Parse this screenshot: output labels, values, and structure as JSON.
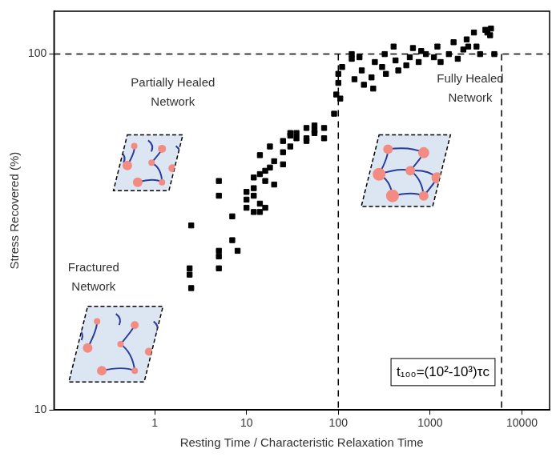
{
  "chart_data": {
    "type": "scatter",
    "x_label": "Resting Time / Characteristic Relaxation Time",
    "y_label": "Stress Recovered (%)",
    "log": true,
    "grid": false,
    "color": "#000000",
    "marker": "square",
    "xlim": [
      0.08,
      20000
    ],
    "ylim": [
      10,
      132
    ],
    "xticks": [
      1,
      10,
      100,
      1000,
      10000
    ],
    "yticks": [
      10,
      100
    ],
    "hlines": [
      100
    ],
    "vlines": [
      100,
      6000
    ],
    "annotations": [
      {
        "text": "Partially Healed Network"
      },
      {
        "text": "Fully Healed Network"
      },
      {
        "text": "Fractured Network"
      },
      {
        "text": "t₁₀₀=(10²-10³)τc"
      }
    ],
    "x": [
      2.4,
      2.4,
      2.5,
      2.5,
      5,
      5,
      5,
      5,
      5,
      7,
      7,
      8,
      10,
      10,
      10,
      12,
      12,
      12,
      12,
      14,
      14,
      14,
      14,
      16,
      16,
      16,
      18,
      18,
      20,
      20,
      25,
      25,
      25,
      30,
      30,
      30,
      35,
      35,
      45,
      45,
      45,
      55,
      55,
      55,
      70,
      70,
      90,
      95,
      100,
      100,
      105,
      110,
      140,
      140,
      150,
      170,
      180,
      190,
      230,
      240,
      250,
      300,
      320,
      330,
      400,
      420,
      450,
      550,
      600,
      650,
      750,
      800,
      900,
      1100,
      1200,
      1300,
      1600,
      1800,
      2000,
      2300,
      2500,
      2600,
      3000,
      3200,
      3500,
      4000,
      4200,
      4500,
      4600,
      5000
    ],
    "values": [
      25,
      24,
      22,
      33,
      44,
      28,
      27,
      25,
      40,
      35,
      30,
      28,
      41,
      39,
      37,
      45,
      40,
      42,
      36,
      52,
      46,
      38,
      36,
      47,
      37,
      44,
      48,
      55,
      50,
      43,
      57,
      49,
      53,
      60,
      59,
      55,
      58,
      60,
      57,
      58,
      62,
      63,
      61,
      60,
      62,
      58,
      68,
      77,
      83,
      88,
      75,
      92,
      97,
      100,
      85,
      98,
      90,
      82,
      86,
      80,
      95,
      92,
      100,
      88,
      105,
      96,
      90,
      93,
      98,
      104,
      95,
      102,
      100,
      98,
      105,
      95,
      100,
      108,
      97,
      103,
      110,
      105,
      115,
      105,
      100,
      117,
      115,
      113,
      118,
      100
    ]
  }
}
